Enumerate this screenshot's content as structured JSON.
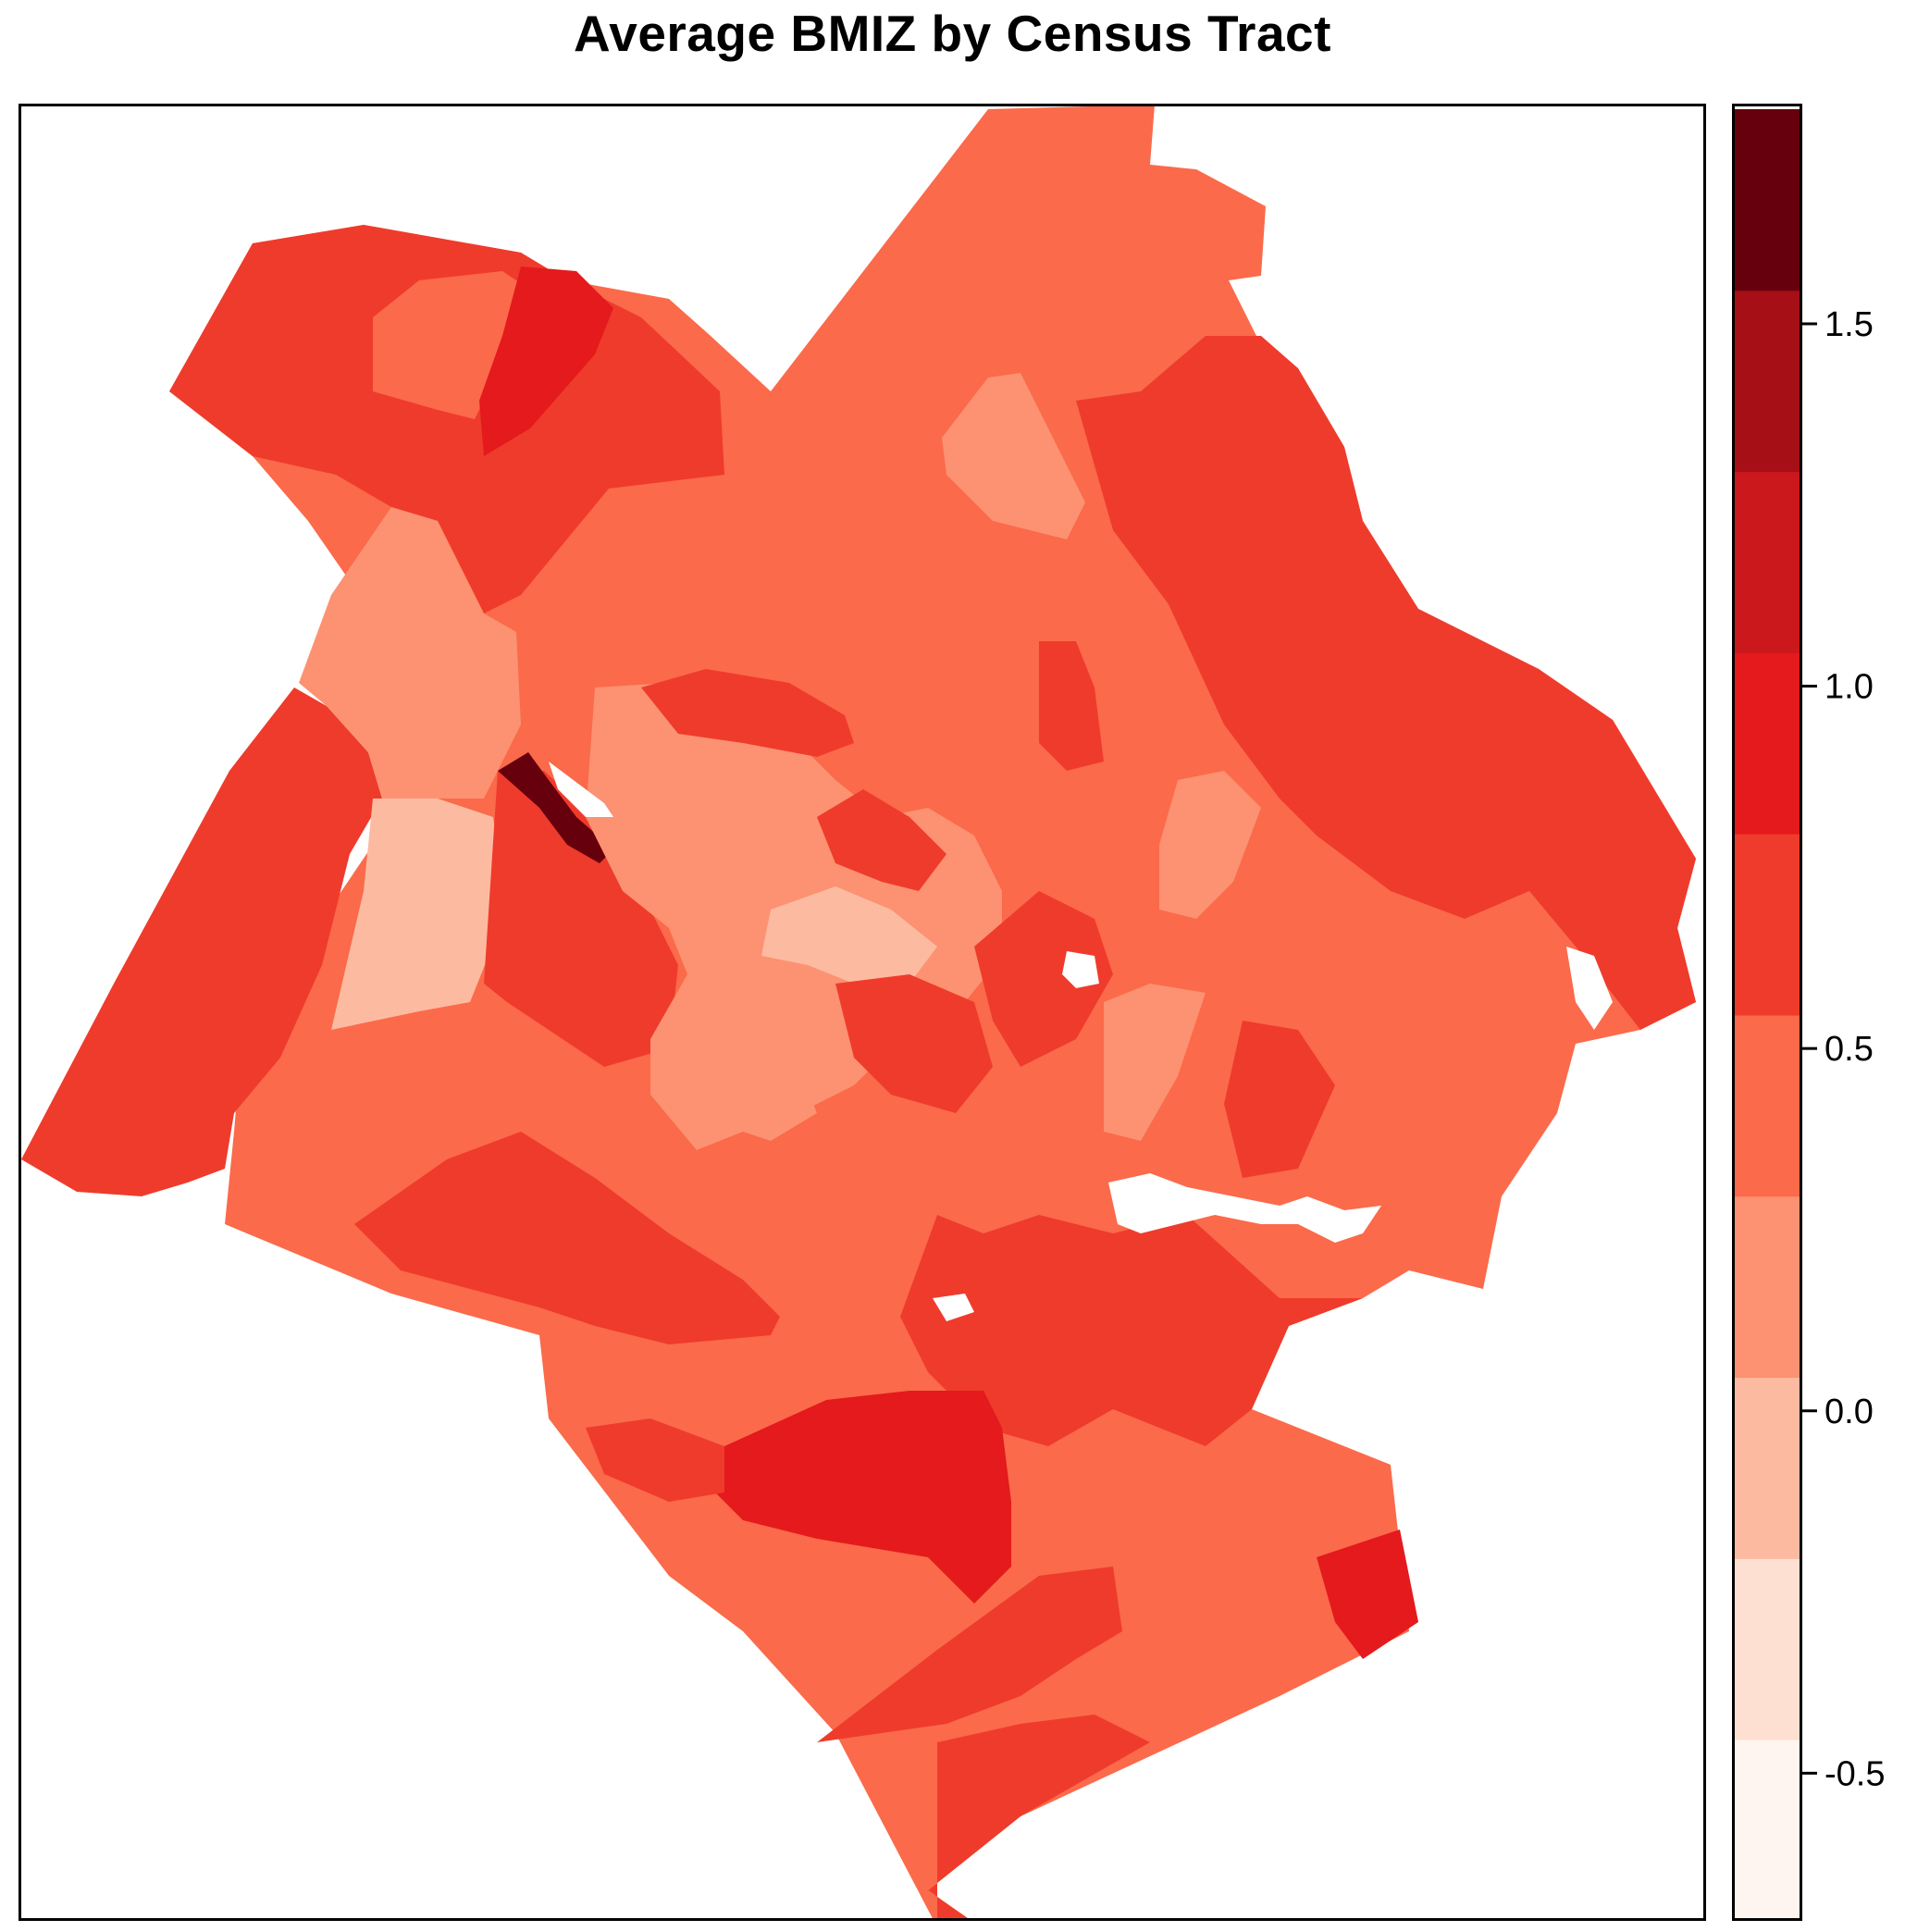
{
  "title": "Average BMIZ by Census Tract",
  "legend": {
    "ticks": [
      "-0.5",
      "0.0",
      "0.5",
      "1.0",
      "1.5"
    ],
    "bins": [
      {
        "from": -0.7,
        "to": -0.45,
        "color": "#FFF5F0"
      },
      {
        "from": -0.45,
        "to": -0.2,
        "color": "#FEE0D2"
      },
      {
        "from": -0.2,
        "to": 0.05,
        "color": "#FCBBA1"
      },
      {
        "from": 0.05,
        "to": 0.3,
        "color": "#FC9272"
      },
      {
        "from": 0.3,
        "to": 0.55,
        "color": "#FB6A4A"
      },
      {
        "from": 0.55,
        "to": 0.8,
        "color": "#EF3B2C"
      },
      {
        "from": 0.8,
        "to": 1.05,
        "color": "#E41A1C"
      },
      {
        "from": 1.05,
        "to": 1.3,
        "color": "#CB181D"
      },
      {
        "from": 1.3,
        "to": 1.55,
        "color": "#A50F15"
      },
      {
        "from": 1.55,
        "to": 1.8,
        "color": "#67000D"
      }
    ]
  },
  "map": {
    "colors": {
      "c0": "#FCBBA1",
      "c1": "#FC9272",
      "c2": "#FB6A4A",
      "c3": "#EF3B2C",
      "c4": "#E41A1C",
      "c5": "#67000D"
    }
  }
}
